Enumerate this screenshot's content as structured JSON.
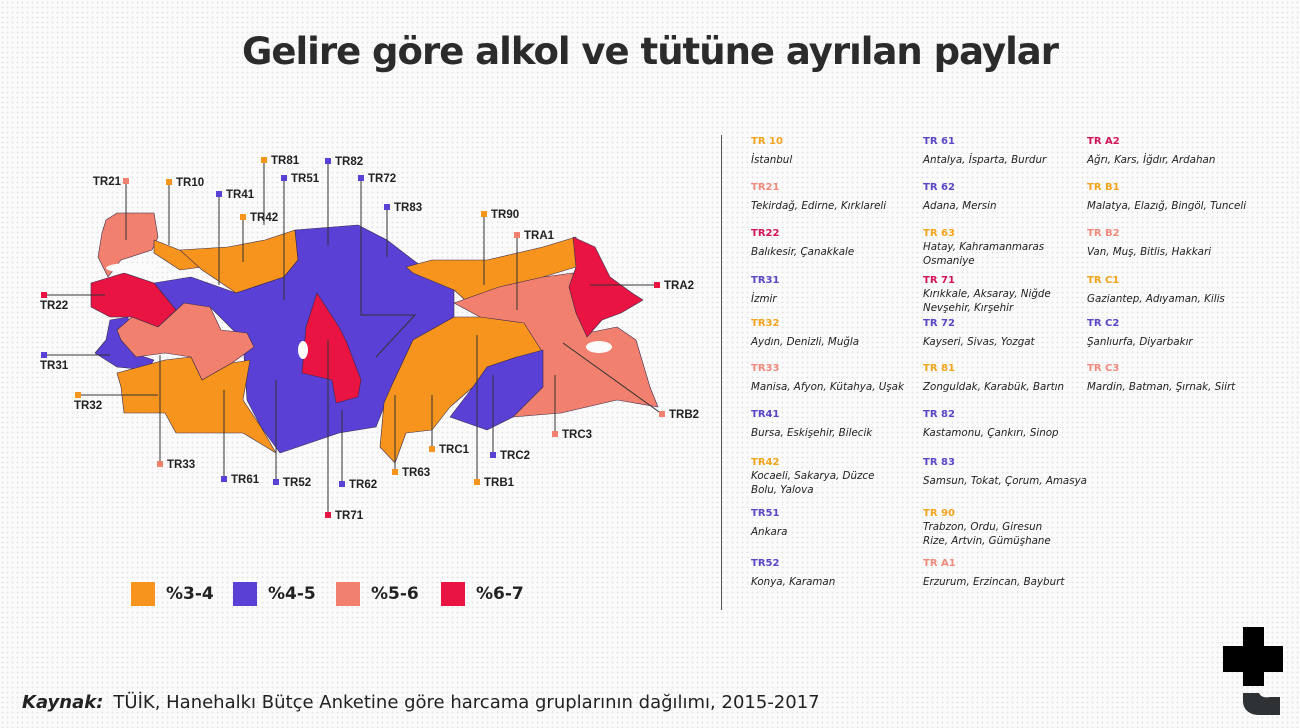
{
  "title": "Gelire göre alkol ve tütüne ayrılan paylar",
  "colors": {
    "%3-4": "#f7941d",
    "%4-5": "#5a40d4",
    "%5-6": "#f2806e",
    "%6-7": "#ea1442"
  },
  "code_colors": {
    "%3-4": "#f2a41c",
    "%4-5": "#5b47c6",
    "%5-6": "#ef8a7c",
    "%6-7": "#d2145a"
  },
  "legend": [
    {
      "label": "%3-4",
      "level": "%3-4"
    },
    {
      "label": "%4-5",
      "level": "%4-5"
    },
    {
      "label": "%5-6",
      "level": "%5-6"
    },
    {
      "label": "%6-7",
      "level": "%6-7"
    }
  ],
  "map_labels": {
    "TR21": {
      "text": "TR21",
      "level": "%5-6"
    },
    "TR10": {
      "text": "TR10",
      "level": "%3-4"
    },
    "TR41": {
      "text": "TR41",
      "level": "%4-5"
    },
    "TR42": {
      "text": "TR42",
      "level": "%3-4"
    },
    "TR81": {
      "text": "TR81",
      "level": "%3-4"
    },
    "TR51": {
      "text": "TR51",
      "level": "%4-5"
    },
    "TR82": {
      "text": "TR82",
      "level": "%4-5"
    },
    "TR72": {
      "text": "TR72",
      "level": "%4-5"
    },
    "TR83": {
      "text": "TR83",
      "level": "%4-5"
    },
    "TR90": {
      "text": "TR90",
      "level": "%3-4"
    },
    "TRA1": {
      "text": "TRA1",
      "level": "%5-6"
    },
    "TRA2": {
      "text": "TRA2",
      "level": "%6-7"
    },
    "TR22": {
      "text": "TR22",
      "level": "%6-7"
    },
    "TR31": {
      "text": "TR31",
      "level": "%4-5"
    },
    "TR32": {
      "text": "TR32",
      "level": "%3-4"
    },
    "TR33": {
      "text": "TR33",
      "level": "%5-6"
    },
    "TR61": {
      "text": "TR61",
      "level": "%4-5"
    },
    "TR52": {
      "text": "TR52",
      "level": "%4-5"
    },
    "TR62": {
      "text": "TR62",
      "level": "%4-5"
    },
    "TR71": {
      "text": "TR71",
      "level": "%6-7"
    },
    "TR63": {
      "text": "TR63",
      "level": "%3-4"
    },
    "TRC1": {
      "text": "TRC1",
      "level": "%3-4"
    },
    "TRC2": {
      "text": "TRC2",
      "level": "%4-5"
    },
    "TRB1": {
      "text": "TRB1",
      "level": "%3-4"
    },
    "TRC3": {
      "text": "TRC3",
      "level": "%5-6"
    },
    "TRB2": {
      "text": "TRB2",
      "level": "%5-6"
    }
  },
  "region_list": [
    [
      {
        "code": "TR 10",
        "level": "%3-4",
        "provinces": "İstanbul"
      },
      {
        "code": "TR21",
        "level": "%5-6",
        "provinces": "Tekirdağ, Edirne, Kırklareli"
      },
      {
        "code": "TR22",
        "level": "%6-7",
        "provinces": "Balıkesir, Çanakkale"
      },
      {
        "code": "TR31",
        "level": "%4-5",
        "provinces": "İzmir"
      },
      {
        "code": "TR32",
        "level": "%3-4",
        "provinces": "Aydın, Denizli, Muğla"
      },
      {
        "code": "TR33",
        "level": "%5-6",
        "provinces": "Manisa, Afyon, Kütahya, Uşak"
      },
      {
        "code": "TR41",
        "level": "%4-5",
        "provinces": "Bursa, Eskişehir, Bilecik"
      },
      {
        "code": "TR42",
        "level": "%3-4",
        "provinces": "Kocaeli, Sakarya, Düzce\nBolu, Yalova"
      },
      {
        "code": "TR51",
        "level": "%4-5",
        "provinces": "Ankara"
      },
      {
        "code": "TR52",
        "level": "%4-5",
        "provinces": "Konya, Karaman"
      }
    ],
    [
      {
        "code": "TR 61",
        "level": "%4-5",
        "provinces": "Antalya, İsparta, Burdur"
      },
      {
        "code": "TR 62",
        "level": "%4-5",
        "provinces": "Adana, Mersin"
      },
      {
        "code": "TR 63",
        "level": "%3-4",
        "provinces": "Hatay, Kahramanmaras\nOsmaniye"
      },
      {
        "code": "TR 71",
        "level": "%6-7",
        "provinces": "Kırıkkale, Aksaray, Niğde\nNevşehir, Kırşehir"
      },
      {
        "code": "TR 72",
        "level": "%4-5",
        "provinces": "Kayseri, Sivas, Yozgat"
      },
      {
        "code": "TR 81",
        "level": "%3-4",
        "provinces": "Zonguldak, Karabük, Bartın"
      },
      {
        "code": "TR 82",
        "level": "%4-5",
        "provinces": "Kastamonu, Çankırı, Sinop"
      },
      {
        "code": "TR 83",
        "level": "%4-5",
        "provinces": "Samsun, Tokat, Çorum, Amasya"
      },
      {
        "code": "TR 90",
        "level": "%3-4",
        "provinces": "Trabzon, Ordu, Giresun\nRize, Artvin, Gümüşhane"
      },
      {
        "code": "TR A1",
        "level": "%5-6",
        "provinces": "Erzurum, Erzincan, Bayburt"
      }
    ],
    [
      {
        "code": "TR A2",
        "level": "%6-7",
        "provinces": "Ağrı, Kars, İğdır, Ardahan"
      },
      {
        "code": "TR B1",
        "level": "%3-4",
        "provinces": "Malatya, Elazığ, Bingöl, Tunceli"
      },
      {
        "code": "TR B2",
        "level": "%5-6",
        "provinces": "Van, Muş, Bitlis, Hakkari"
      },
      {
        "code": "TR C1",
        "level": "%3-4",
        "provinces": "Gaziantep, Adıyaman, Kilis"
      },
      {
        "code": "TR C2",
        "level": "%4-5",
        "provinces": "Şanlıurfa, Diyarbakır"
      },
      {
        "code": "TR C3",
        "level": "%5-6",
        "provinces": "Mardin, Batman, Şırnak, Siirt"
      }
    ]
  ],
  "source": {
    "label": "Kaynak:",
    "text": "TÜİK, Hanehalkı Bütçe Anketine göre harcama gruplarının dağılımı, 2015-2017"
  },
  "logo": "t24"
}
